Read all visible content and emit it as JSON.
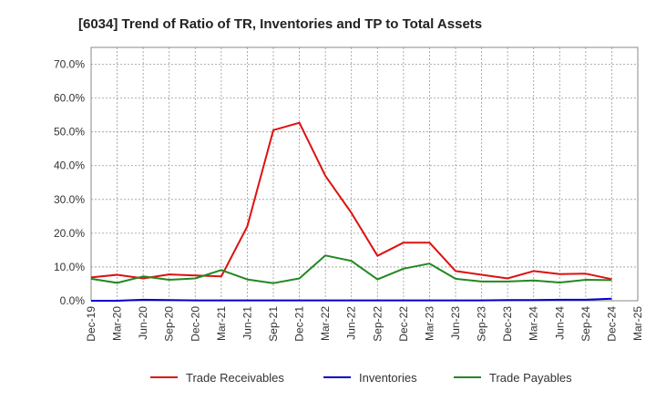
{
  "chart_data": {
    "type": "line",
    "title": "[6034]  Trend of Ratio of TR, Inventories and TP to Total Assets",
    "xlabel": "",
    "ylabel": "",
    "ylim": [
      0,
      0.75
    ],
    "y_ticks": [
      0,
      0.1,
      0.2,
      0.3,
      0.4,
      0.5,
      0.6,
      0.7
    ],
    "y_tick_labels": [
      "0.0%",
      "10.0%",
      "20.0%",
      "30.0%",
      "40.0%",
      "50.0%",
      "60.0%",
      "70.0%"
    ],
    "x_tick_labels": [
      "Dec-19",
      "Mar-20",
      "Jun-20",
      "Sep-20",
      "Dec-20",
      "Mar-21",
      "Jun-21",
      "Sep-21",
      "Dec-21",
      "Mar-22",
      "Jun-22",
      "Sep-22",
      "Dec-22",
      "Mar-23",
      "Jun-23",
      "Sep-23",
      "Dec-23",
      "Mar-24",
      "Jun-24",
      "Sep-24",
      "Dec-24",
      "Mar-25"
    ],
    "x": [
      "Dec-19",
      "Mar-20",
      "Jun-20",
      "Sep-20",
      "Dec-20",
      "Mar-21",
      "Jun-21",
      "Sep-21",
      "Dec-21",
      "Mar-22",
      "Jun-22",
      "Sep-22",
      "Dec-22",
      "Mar-23",
      "Jun-23",
      "Sep-23",
      "Dec-23",
      "Mar-24",
      "Jun-24",
      "Sep-24",
      "Dec-24"
    ],
    "grid": true,
    "legend_position": "bottom",
    "series": [
      {
        "name": "Trade Receivables",
        "color": "#dd1111",
        "values": [
          0.069,
          0.077,
          0.066,
          0.078,
          0.075,
          0.072,
          0.22,
          0.505,
          0.527,
          0.37,
          0.26,
          0.133,
          0.172,
          0.172,
          0.088,
          0.077,
          0.066,
          0.088,
          0.079,
          0.08,
          0.064
        ]
      },
      {
        "name": "Inventories",
        "color": "#0000cc",
        "values": [
          0.0,
          0.0,
          0.003,
          0.002,
          0.001,
          0.001,
          0.001,
          0.001,
          0.001,
          0.001,
          0.001,
          0.001,
          0.001,
          0.001,
          0.001,
          0.001,
          0.002,
          0.002,
          0.003,
          0.003,
          0.006
        ]
      },
      {
        "name": "Trade Payables",
        "color": "#228822",
        "values": [
          0.065,
          0.053,
          0.072,
          0.062,
          0.066,
          0.091,
          0.063,
          0.052,
          0.066,
          0.134,
          0.118,
          0.063,
          0.095,
          0.11,
          0.065,
          0.057,
          0.057,
          0.06,
          0.054,
          0.062,
          0.061
        ]
      }
    ]
  }
}
